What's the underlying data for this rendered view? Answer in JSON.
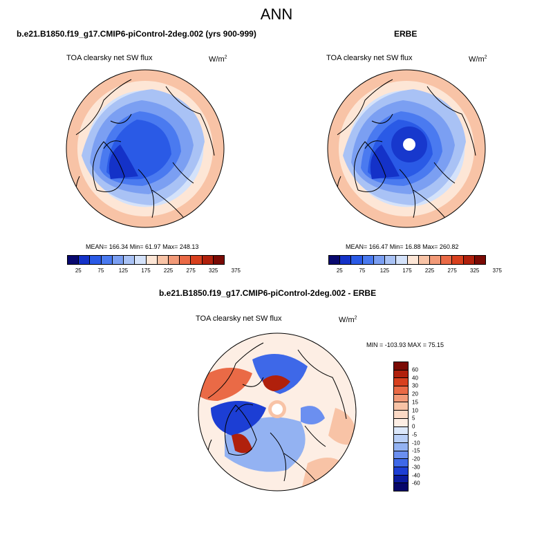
{
  "figure": {
    "title": "ANN"
  },
  "panels": [
    {
      "title": "b.e21.B1850.f19_g17.CMIP6-piControl-2deg.002 (yrs 900-999)",
      "variable": "TOA clearsky net SW flux",
      "units_base": "W/m",
      "units_exp": "2",
      "stats": "MEAN= 166.34  Min=  61.97  Max= 248.13"
    },
    {
      "title": "ERBE",
      "variable": "TOA clearsky net SW flux",
      "units_base": "W/m",
      "units_exp": "2",
      "stats": "MEAN= 166.47  Min=  16.88  Max= 260.82"
    },
    {
      "title": "b.e21.B1850.f19_g17.CMIP6-piControl-2deg.002 - ERBE",
      "variable": "TOA clearsky net SW flux",
      "units_base": "W/m",
      "units_exp": "2",
      "stats": "MIN = -103.93 MAX =  75.15"
    }
  ],
  "colorbar_abs": {
    "labels": [
      "25",
      "75",
      "125",
      "175",
      "225",
      "275",
      "325",
      "375"
    ],
    "colors": [
      "#08086e",
      "#1432c8",
      "#2a5ae6",
      "#4a7af0",
      "#7b9ff2",
      "#a9c2f5",
      "#d4e2fa",
      "#fde6d6",
      "#f8c3a6",
      "#f29a78",
      "#ea6a46",
      "#d8401e",
      "#b0200c",
      "#7a0a04"
    ]
  },
  "colorbar_diff": {
    "labels": [
      "60",
      "40",
      "30",
      "20",
      "15",
      "10",
      "5",
      "0",
      "-5",
      "-10",
      "-15",
      "-20",
      "-30",
      "-40",
      "-60"
    ],
    "colors": [
      "#7a0a04",
      "#b0200c",
      "#d8401e",
      "#ea6a46",
      "#f29a78",
      "#f8c3a6",
      "#fbd9c5",
      "#fdeee4",
      "#dce8fb",
      "#b9cff7",
      "#93b2f2",
      "#6b8ff0",
      "#3e68e8",
      "#1c3ed4",
      "#0a1a9e",
      "#06066a"
    ]
  }
}
